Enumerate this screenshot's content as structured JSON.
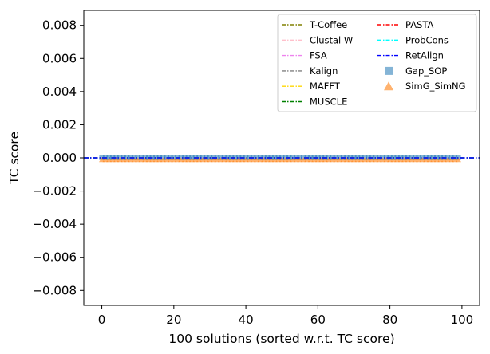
{
  "chart_data": {
    "type": "line",
    "title": "",
    "xlabel": "100 solutions (sorted w.r.t. TC score)",
    "ylabel": "TC score",
    "xlim": [
      -5,
      104.9
    ],
    "ylim": [
      -0.0089,
      0.0089
    ],
    "x_ticks": [
      0,
      20,
      40,
      60,
      80,
      100
    ],
    "y_ticks": [
      0.008,
      0.006,
      0.004,
      0.002,
      0.0,
      -0.002,
      -0.004,
      -0.006,
      -0.008
    ],
    "y_tick_labels": [
      "0.008",
      "0.006",
      "0.004",
      "0.002",
      "0.000",
      "−0.002",
      "−0.004",
      "−0.006",
      "−0.008"
    ],
    "grid": false,
    "legend_position": "top-right",
    "legend_columns": 2,
    "reference_lines": [
      {
        "name": "T-Coffee",
        "y": 0,
        "color": "#808000"
      },
      {
        "name": "Clustal W",
        "y": 0,
        "color": "#ffc0cb"
      },
      {
        "name": "FSA",
        "y": 0,
        "color": "#ee82ee"
      },
      {
        "name": "Kalign",
        "y": 0,
        "color": "#808080"
      },
      {
        "name": "MAFFT",
        "y": 0,
        "color": "#ffd700"
      },
      {
        "name": "MUSCLE",
        "y": 0,
        "color": "#008000"
      },
      {
        "name": "PASTA",
        "y": 0,
        "color": "#ff0000"
      },
      {
        "name": "ProbCons",
        "y": 0,
        "color": "#00ffff"
      },
      {
        "name": "RetAlign",
        "y": 0,
        "color": "#0000ff"
      }
    ],
    "scatter_series": [
      {
        "name": "Gap_SOP",
        "marker": "square",
        "color": "#1f77b4",
        "x_start": 0,
        "x_end": 99,
        "y": 0
      },
      {
        "name": "SimG_SimNG",
        "marker": "triangle",
        "color": "#ff7f0e",
        "x_start": 0,
        "x_end": 99,
        "y": 0
      }
    ]
  }
}
